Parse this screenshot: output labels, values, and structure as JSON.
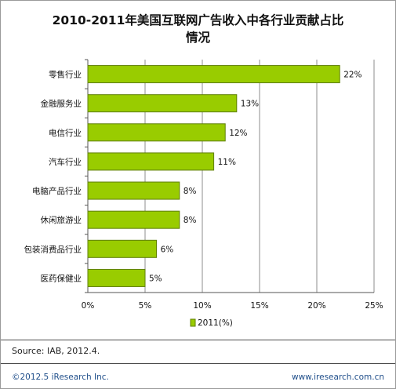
{
  "title_line1": "2010-2011年美国互联网广告收入中各行业贡献占比",
  "title_line2": "情况",
  "chart_data": {
    "type": "bar",
    "orientation": "horizontal",
    "categories": [
      "零售行业",
      "金融服务业",
      "电信行业",
      "汽车行业",
      "电脑产品行业",
      "休闲旅游业",
      "包装消费品行业",
      "医药保健业"
    ],
    "series": [
      {
        "name": "2011(%)",
        "values": [
          22,
          13,
          12,
          11,
          8,
          8,
          6,
          5
        ],
        "value_labels": [
          "22%",
          "13%",
          "12%",
          "11%",
          "8%",
          "8%",
          "6%",
          "5%"
        ]
      }
    ],
    "xlim": [
      0,
      25
    ],
    "x_ticks": [
      0,
      5,
      10,
      15,
      20,
      25
    ],
    "x_tick_labels": [
      "0%",
      "5%",
      "10%",
      "15%",
      "20%",
      "25%"
    ],
    "grid": "vertical",
    "legend_position": "bottom-center",
    "bar_color": "#99cc00",
    "bar_border_color": "#5f7f00"
  },
  "source": "Source:  IAB, 2012.4.",
  "footer_left": "©2012.5 iResearch Inc.",
  "footer_right": "www.iresearch.com.cn"
}
